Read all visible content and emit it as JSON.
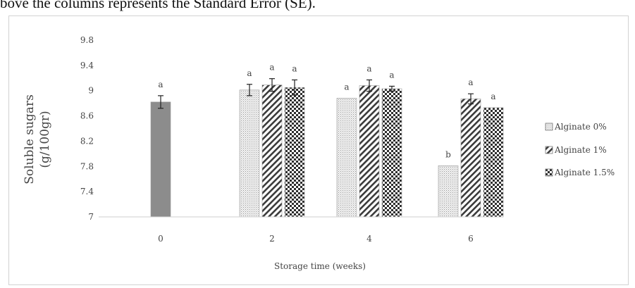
{
  "caption": "bove the columns represents the Standard Error (SE).",
  "chart_data": {
    "type": "bar",
    "categories": [
      "0",
      "2",
      "4",
      "6"
    ],
    "xlabel": "Storage time (weeks)",
    "ylabel_line1": "Soluble sugars",
    "ylabel_line2": "(g/100gr)",
    "ylim": [
      7,
      9.8
    ],
    "yticks": [
      "7",
      "7.4",
      "7.8",
      "8.2",
      "8.6",
      "9",
      "9.4",
      "9.8"
    ],
    "legend_position": "right",
    "control": {
      "category": "0",
      "value": 8.82,
      "se": 0.1,
      "letter": "a",
      "color": "#8c8c8c"
    },
    "series": [
      {
        "name": "Alginate 0%",
        "pattern": "dots",
        "values": [
          null,
          9.01,
          8.88,
          7.81
        ],
        "se": [
          null,
          0.09,
          0,
          0
        ],
        "letters": [
          null,
          "a",
          "a",
          "b"
        ]
      },
      {
        "name": "Alginate 1%",
        "pattern": "hatch",
        "values": [
          null,
          9.09,
          9.08,
          8.87
        ],
        "se": [
          null,
          0.1,
          0.09,
          0.08
        ],
        "letters": [
          null,
          "a",
          "a",
          "a"
        ]
      },
      {
        "name": "Alginate 1.5%",
        "pattern": "checker",
        "values": [
          null,
          9.05,
          9.03,
          8.73
        ],
        "se": [
          null,
          0.12,
          0.04,
          0
        ],
        "letters": [
          null,
          "a",
          "a",
          "a"
        ]
      }
    ]
  }
}
